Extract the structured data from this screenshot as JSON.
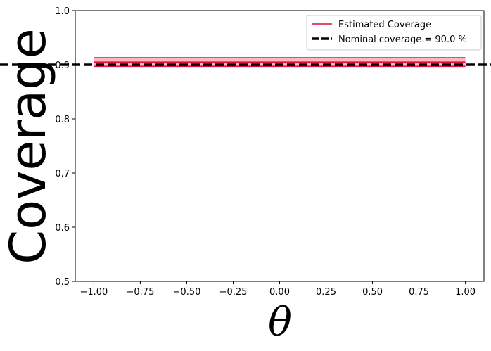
{
  "chart_data": {
    "type": "line",
    "title": "",
    "xlabel": "θ",
    "ylabel": "Coverage",
    "xlim": [
      -1.1,
      1.1
    ],
    "ylim": [
      0.5,
      1.0
    ],
    "x_ticks": [
      -1.0,
      -0.75,
      -0.5,
      -0.25,
      0.0,
      0.25,
      0.5,
      0.75,
      1.0
    ],
    "x_tick_labels": [
      "−1.00",
      "−0.75",
      "−0.50",
      "−0.25",
      "0.00",
      "0.25",
      "0.50",
      "0.75",
      "1.00"
    ],
    "y_ticks": [
      0.5,
      0.6,
      0.7,
      0.8,
      0.9,
      1.0
    ],
    "y_tick_labels": [
      "0.5",
      "0.6",
      "0.7",
      "0.8",
      "0.9",
      "1.0"
    ],
    "grid": false,
    "legend_position": "top-right",
    "series": [
      {
        "name": "Estimated Coverage",
        "color": "#dc143c",
        "style": "solid",
        "x": [
          -1.0,
          1.0
        ],
        "y": [
          0.905,
          0.905
        ],
        "band_lower": [
          0.897,
          0.897
        ],
        "band_upper": [
          0.913,
          0.913
        ],
        "band_color": "#ffb6c1"
      },
      {
        "name": "Nominal coverage = 90.0 %",
        "color": "#000000",
        "style": "dashed",
        "y_const": 0.9
      }
    ]
  }
}
